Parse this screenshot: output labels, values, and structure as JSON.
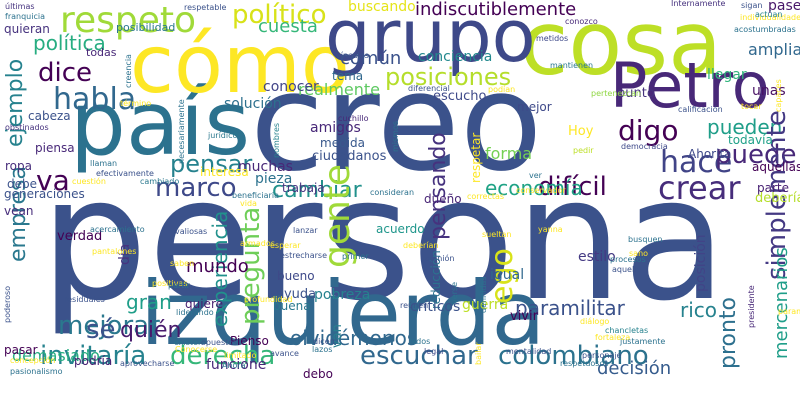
{
  "background": "#ffffff",
  "palette": [
    "#440154",
    "#46327e",
    "#365c8d",
    "#277f8e",
    "#1fa187",
    "#4ac16d",
    "#a0da39",
    "#fde725"
  ],
  "words": [
    {
      "t": "persona",
      "c": "#3b528b"
    },
    {
      "t": "creo",
      "c": "#3b528b"
    },
    {
      "t": "país",
      "c": "#2c728e"
    },
    {
      "t": "izquierda",
      "c": "#31688e"
    },
    {
      "t": "cómo",
      "c": "#fde725"
    },
    {
      "t": "cosa",
      "c": "#bddf26"
    },
    {
      "t": "grupo",
      "c": "#3e4989"
    },
    {
      "t": "Petro",
      "c": "#482878"
    },
    {
      "t": "respeto",
      "c": "#a0da39"
    },
    {
      "t": "político",
      "c": "#d8e219"
    },
    {
      "t": "política",
      "c": "#27ad81"
    },
    {
      "t": "dice",
      "c": "#440154"
    },
    {
      "t": "habla",
      "c": "#31688e"
    },
    {
      "t": "posiciones",
      "c": "#b5de2b"
    },
    {
      "t": "común",
      "c": "#3b528b"
    },
    {
      "t": "cuesta",
      "c": "#35b779"
    },
    {
      "t": "ejemplo",
      "c": "#26828e"
    },
    {
      "t": "amplia",
      "c": "#31688e"
    },
    {
      "t": "digo",
      "c": "#440154"
    },
    {
      "t": "hace",
      "c": "#414487"
    },
    {
      "t": "puede",
      "c": "#482878"
    },
    {
      "t": "pueden",
      "c": "#1f9e89"
    },
    {
      "t": "pensar",
      "c": "#26828e"
    },
    {
      "t": "marco",
      "c": "#3e4989"
    },
    {
      "t": "va",
      "c": "#440154"
    },
    {
      "t": "cambiar",
      "c": "#21918c"
    },
    {
      "t": "difícil",
      "c": "#440154"
    },
    {
      "t": "crear",
      "c": "#472d7b"
    },
    {
      "t": "empresa",
      "c": "#2a788e"
    },
    {
      "t": "pensando",
      "c": "#46327e"
    },
    {
      "t": "gente",
      "c": "#a0da39"
    },
    {
      "t": "ego",
      "c": "#d8e219"
    },
    {
      "t": "pregunta",
      "c": "#6ece58"
    },
    {
      "t": "experiencia",
      "c": "#21918c"
    },
    {
      "t": "economía",
      "c": "#20a386"
    },
    {
      "t": "mejorar",
      "c": "#2a788e"
    },
    {
      "t": "invitaría",
      "c": "#26828e"
    },
    {
      "t": "derecha",
      "c": "#35b779"
    },
    {
      "t": "sé",
      "c": "#3b528b"
    },
    {
      "t": "escuchar",
      "c": "#31688e"
    },
    {
      "t": "colombiano",
      "c": "#2c728e"
    },
    {
      "t": "simplemente",
      "c": "#443983"
    },
    {
      "t": "pronto",
      "c": "#2d708e"
    },
    {
      "t": "mercenarios",
      "c": "#1f9e89"
    },
    {
      "t": "decisión",
      "c": "#365c8d"
    },
    {
      "t": "paramilitar",
      "c": "#3b528b"
    },
    {
      "t": "olvidémonos",
      "c": "#31688e"
    },
    {
      "t": "quién",
      "c": "#481a6c"
    },
    {
      "t": "demasiado",
      "c": "#27ad81"
    },
    {
      "t": "gran",
      "c": "#1f9e89"
    },
    {
      "t": "mundo",
      "c": "#440154"
    },
    {
      "t": "rico",
      "c": "#26828e"
    },
    {
      "t": "indiscutiblemente",
      "c": "#440154"
    },
    {
      "t": "buscando",
      "c": "#e5e419"
    },
    {
      "t": "conciencia",
      "c": "#23898e"
    },
    {
      "t": "realmente",
      "c": "#5ec962"
    },
    {
      "t": "solución",
      "c": "#2d708e"
    },
    {
      "t": "conocer",
      "c": "#414487"
    },
    {
      "t": "escucho",
      "c": "#3e4989"
    },
    {
      "t": "punto",
      "c": "#46327e"
    },
    {
      "t": "unas",
      "c": "#471063"
    },
    {
      "t": "llegar",
      "c": "#2fb47c"
    },
    {
      "t": "pase",
      "c": "#48186a"
    },
    {
      "t": "forma",
      "c": "#75d054"
    },
    {
      "t": "Ahorita",
      "c": "#3e4989"
    },
    {
      "t": "todavía",
      "c": "#1fa188"
    },
    {
      "t": "aquellas",
      "c": "#440154"
    },
    {
      "t": "parte",
      "c": "#482173"
    },
    {
      "t": "debería",
      "c": "#b5de2b"
    },
    {
      "t": "amigos",
      "c": "#482878"
    },
    {
      "t": "medida",
      "c": "#38588c"
    },
    {
      "t": "ciudadanos",
      "c": "#3b528b"
    },
    {
      "t": "trabaja",
      "c": "#46337f"
    },
    {
      "t": "dueño",
      "c": "#482576"
    },
    {
      "t": "igual",
      "c": "#31688e"
    },
    {
      "t": "estilo",
      "c": "#443983"
    },
    {
      "t": "posición",
      "c": "#414487"
    },
    {
      "t": "reducción",
      "c": "#2c728e"
    },
    {
      "t": "acuerdo",
      "c": "#1f968b"
    },
    {
      "t": "verdad",
      "c": "#440154"
    },
    {
      "t": "día",
      "c": "#46337f"
    },
    {
      "t": "ayuda",
      "c": "#3b528b"
    },
    {
      "t": "pobreza",
      "c": "#26828e"
    },
    {
      "t": "bueno",
      "c": "#3e4989"
    },
    {
      "t": "quiere",
      "c": "#481f70"
    },
    {
      "t": "buena",
      "c": "#2a788e"
    },
    {
      "t": "guerra",
      "c": "#bddf26"
    },
    {
      "t": "críticos",
      "c": "#3b528b"
    },
    {
      "t": "vivir",
      "c": "#440154"
    },
    {
      "t": "Pienso",
      "c": "#440154"
    },
    {
      "t": "funcione",
      "c": "#482878"
    },
    {
      "t": "debo",
      "c": "#440154"
    },
    {
      "t": "podría",
      "c": "#482173"
    },
    {
      "t": "pasar",
      "c": "#440154"
    },
    {
      "t": "van",
      "c": "#277f8e"
    },
    {
      "t": "muchas",
      "c": "#482878"
    },
    {
      "t": "interesa",
      "c": "#fde725"
    },
    {
      "t": "pieza",
      "c": "#2c728e"
    },
    {
      "t": "generaciones",
      "c": "#3b528b"
    },
    {
      "t": "debe",
      "c": "#3b528b"
    },
    {
      "t": "ropa",
      "c": "#472d7b"
    },
    {
      "t": "piensa",
      "c": "#482878"
    },
    {
      "t": "cabeza",
      "c": "#3b528b"
    },
    {
      "t": "vean",
      "c": "#472d7b"
    },
    {
      "t": "quieran",
      "c": "#46327e"
    },
    {
      "t": "todas",
      "c": "#482878"
    },
    {
      "t": "posibilidad",
      "c": "#2a788e"
    },
    {
      "t": "tema",
      "c": "#31688e"
    },
    {
      "t": "mejor",
      "c": "#3e4989"
    },
    {
      "t": "Hoy",
      "c": "#fde725"
    },
    {
      "t": "respetar",
      "c": "#fde725"
    },
    {
      "t": "últimas",
      "c": "#46337f"
    },
    {
      "t": "franquicia",
      "c": "#2c728e"
    },
    {
      "t": "respetable",
      "c": "#3b528b"
    },
    {
      "t": "Internamente",
      "c": "#46327e"
    },
    {
      "t": "sigan",
      "c": "#3b528b"
    },
    {
      "t": "conozco",
      "c": "#482878"
    },
    {
      "t": "individualidades",
      "c": "#fde725"
    },
    {
      "t": "acostumbradas",
      "c": "#2c728e"
    },
    {
      "t": "actúan",
      "c": "#26828e"
    },
    {
      "t": "metidos",
      "c": "#3e4989"
    },
    {
      "t": "mantienen",
      "c": "#2a788e"
    },
    {
      "t": "pertenezcan",
      "c": "#90d743"
    },
    {
      "t": "calificación",
      "c": "#3b528b"
    },
    {
      "t": "tocar",
      "c": "#fde725"
    },
    {
      "t": "capaces",
      "c": "#fde725"
    },
    {
      "t": "democracia",
      "c": "#3e4989"
    },
    {
      "t": "pedir",
      "c": "#bddf26"
    },
    {
      "t": "necesariamente",
      "c": "#2c728e"
    },
    {
      "t": "término",
      "c": "#fde725"
    },
    {
      "t": "obstinados",
      "c": "#46327e"
    },
    {
      "t": "jurídico",
      "c": "#2a788e"
    },
    {
      "t": "nombres",
      "c": "#26828e"
    },
    {
      "t": "mismos",
      "c": "#2c728e"
    },
    {
      "t": "cuchillo",
      "c": "#482878"
    },
    {
      "t": "diferencial",
      "c": "#3b528b"
    },
    {
      "t": "podían",
      "c": "#fde725"
    },
    {
      "t": "llaman",
      "c": "#2c728e"
    },
    {
      "t": "cuestión",
      "c": "#fde725"
    },
    {
      "t": "efectivamente",
      "c": "#3b528b"
    },
    {
      "t": "cambiado",
      "c": "#2a788e"
    },
    {
      "t": "beneficiaria",
      "c": "#2c728e"
    },
    {
      "t": "vínculos",
      "c": "#3b528b"
    },
    {
      "t": "ver",
      "c": "#2c728e"
    },
    {
      "t": "vida",
      "c": "#fde725"
    },
    {
      "t": "consideran",
      "c": "#2c728e"
    },
    {
      "t": "correctas",
      "c": "#fde725"
    },
    {
      "t": "conservador",
      "c": "#fde725"
    },
    {
      "t": "valiosas",
      "c": "#3b528b"
    },
    {
      "t": "lanzar",
      "c": "#3b528b"
    },
    {
      "t": "armados",
      "c": "#fde725"
    },
    {
      "t": "esperar",
      "c": "#fde725"
    },
    {
      "t": "estrecharse",
      "c": "#3b528b"
    },
    {
      "t": "primer",
      "c": "#2c728e"
    },
    {
      "t": "deberían",
      "c": "#fde725"
    },
    {
      "t": "sueltan",
      "c": "#fde725"
    },
    {
      "t": "opinión",
      "c": "#3b528b"
    },
    {
      "t": "yanna",
      "c": "#fde725"
    },
    {
      "t": "busquen",
      "c": "#2c728e"
    },
    {
      "t": "sano",
      "c": "#fde725"
    },
    {
      "t": "aquello",
      "c": "#3b528b"
    },
    {
      "t": "procesos",
      "c": "#2c728e"
    },
    {
      "t": "poderoso",
      "c": "#3b528b"
    },
    {
      "t": "acercamiento",
      "c": "#2c728e"
    },
    {
      "t": "pantalones",
      "c": "#fde725"
    },
    {
      "t": "saben",
      "c": "#fde725"
    },
    {
      "t": "positivas",
      "c": "#fde725"
    },
    {
      "t": "partir",
      "c": "#2c728e"
    },
    {
      "t": "residuales",
      "c": "#3b528b"
    },
    {
      "t": "liderando",
      "c": "#2c728e"
    },
    {
      "t": "profundidad",
      "c": "#fde725"
    },
    {
      "t": "verse",
      "c": "#2c728e"
    },
    {
      "t": "reúnen",
      "c": "#3b528b"
    },
    {
      "t": "definidas",
      "c": "#2c728e"
    },
    {
      "t": "paramilitares",
      "c": "#fde725"
    },
    {
      "t": "presidente",
      "c": "#482878"
    },
    {
      "t": "chancletas",
      "c": "#26828e"
    },
    {
      "t": "fortaleza",
      "c": "#fde725"
    },
    {
      "t": "diálogo",
      "c": "#fde725"
    },
    {
      "t": "justamente",
      "c": "#2c728e"
    },
    {
      "t": "personaje",
      "c": "#3b528b"
    },
    {
      "t": "respetuosos",
      "c": "#2c728e"
    },
    {
      "t": "mentalidad",
      "c": "#3b528b"
    },
    {
      "t": "legal",
      "c": "#3e4989"
    },
    {
      "t": "lados",
      "c": "#2c728e"
    },
    {
      "t": "dicen",
      "c": "#3b528b"
    },
    {
      "t": "lazos",
      "c": "#2c728e"
    },
    {
      "t": "avance",
      "c": "#3b528b"
    },
    {
      "t": "existen",
      "c": "#2c728e"
    },
    {
      "t": "opuestos",
      "c": "#3b528b"
    },
    {
      "t": "Conocerse",
      "c": "#fde725"
    },
    {
      "t": "limitado",
      "c": "#fde725"
    },
    {
      "t": "Ahora",
      "c": "#2c728e"
    },
    {
      "t": "aprovecharse",
      "c": "#3b528b"
    },
    {
      "t": "concepción",
      "c": "#fde725"
    },
    {
      "t": "pasionalismo",
      "c": "#2c728e"
    },
    {
      "t": "bailar",
      "c": "#fde725"
    },
    {
      "t": "creencia",
      "c": "#2c728e"
    }
  ]
}
